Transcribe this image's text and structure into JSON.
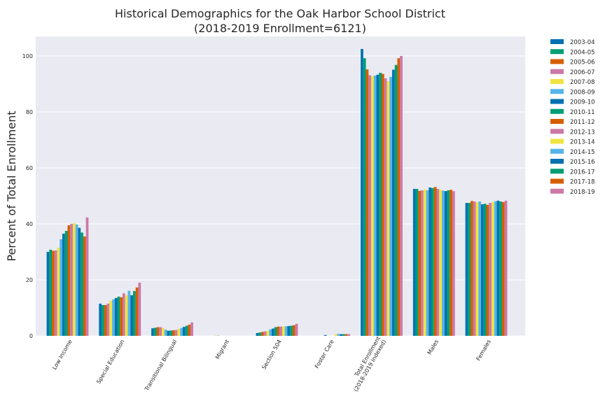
{
  "chart_data": {
    "type": "bar",
    "title": "Historical Demographics for the Oak Harbor School District",
    "subtitle": "(2018-2019 Enrollment=6121)",
    "xlabel": "",
    "ylabel": "Percent of Total Enrollment",
    "ylim": [
      0,
      107
    ],
    "yticks": [
      0,
      20,
      40,
      60,
      80,
      100
    ],
    "grid": true,
    "legend_position": "right-outside",
    "categories": [
      [
        "Low Income"
      ],
      [
        "Special Education"
      ],
      [
        "Transitional Bilingual"
      ],
      [
        "Migrant"
      ],
      [
        "Section 504"
      ],
      [
        "Foster Care"
      ],
      [
        "Total Enrollment",
        "(2018-2019 Indexed)"
      ],
      [
        "Males"
      ],
      [
        "Females"
      ]
    ],
    "series": [
      {
        "name": "2003-04",
        "color": "#0072B2",
        "values": [
          30.0,
          11.5,
          2.7,
          0,
          1.0,
          0,
          102.5,
          52.5,
          47.5
        ]
      },
      {
        "name": "2004-05",
        "color": "#009E73",
        "values": [
          30.8,
          11.0,
          2.9,
          0,
          1.2,
          0,
          99.2,
          52.5,
          47.5
        ]
      },
      {
        "name": "2005-06",
        "color": "#D55E00",
        "values": [
          30.4,
          11.0,
          3.1,
          0,
          1.4,
          0,
          95.2,
          51.8,
          48.2
        ]
      },
      {
        "name": "2006-07",
        "color": "#CC79A7",
        "values": [
          30.5,
          11.5,
          3.1,
          0,
          1.6,
          0,
          93.1,
          52.0,
          48.0
        ]
      },
      {
        "name": "2007-08",
        "color": "#F0E442",
        "values": [
          31.5,
          12.5,
          2.8,
          0.1,
          1.8,
          0,
          92.8,
          52.3,
          47.7
        ]
      },
      {
        "name": "2008-09",
        "color": "#56B4E9",
        "values": [
          34.5,
          13.0,
          2.2,
          0.1,
          2.3,
          0,
          93.0,
          52.0,
          48.0
        ]
      },
      {
        "name": "2009-10",
        "color": "#0072B2",
        "values": [
          36.5,
          13.5,
          1.8,
          0,
          2.6,
          0.3,
          93.3,
          53.0,
          47.0
        ]
      },
      {
        "name": "2010-11",
        "color": "#009E73",
        "values": [
          37.5,
          14.0,
          1.9,
          0,
          3.1,
          0,
          94.0,
          52.8,
          47.2
        ]
      },
      {
        "name": "2011-12",
        "color": "#D55E00",
        "values": [
          39.5,
          13.8,
          2.0,
          0,
          3.3,
          0,
          93.6,
          53.2,
          46.8
        ]
      },
      {
        "name": "2012-13",
        "color": "#CC79A7",
        "values": [
          40.0,
          15.2,
          2.1,
          0,
          3.3,
          0,
          92.0,
          52.5,
          47.5
        ]
      },
      {
        "name": "2013-14",
        "color": "#F0E442",
        "values": [
          40.2,
          14.5,
          2.5,
          0,
          3.3,
          0.6,
          91.0,
          52.2,
          47.8
        ]
      },
      {
        "name": "2014-15",
        "color": "#56B4E9",
        "values": [
          39.8,
          16.1,
          2.8,
          0,
          3.4,
          0.7,
          92.5,
          51.9,
          48.1
        ]
      },
      {
        "name": "2015-16",
        "color": "#0072B2",
        "values": [
          38.6,
          14.5,
          3.2,
          0,
          3.5,
          0.6,
          95.1,
          51.7,
          48.3
        ]
      },
      {
        "name": "2016-17",
        "color": "#009E73",
        "values": [
          36.9,
          16.0,
          3.6,
          0,
          3.6,
          0.6,
          96.8,
          52.0,
          48.0
        ]
      },
      {
        "name": "2017-18",
        "color": "#D55E00",
        "values": [
          35.5,
          17.3,
          4.0,
          0,
          3.8,
          0.6,
          99.2,
          52.2,
          47.8
        ]
      },
      {
        "name": "2018-19",
        "color": "#CC79A7",
        "values": [
          42.3,
          19.0,
          4.8,
          0,
          4.3,
          0.6,
          100.0,
          51.7,
          48.3
        ]
      }
    ]
  }
}
